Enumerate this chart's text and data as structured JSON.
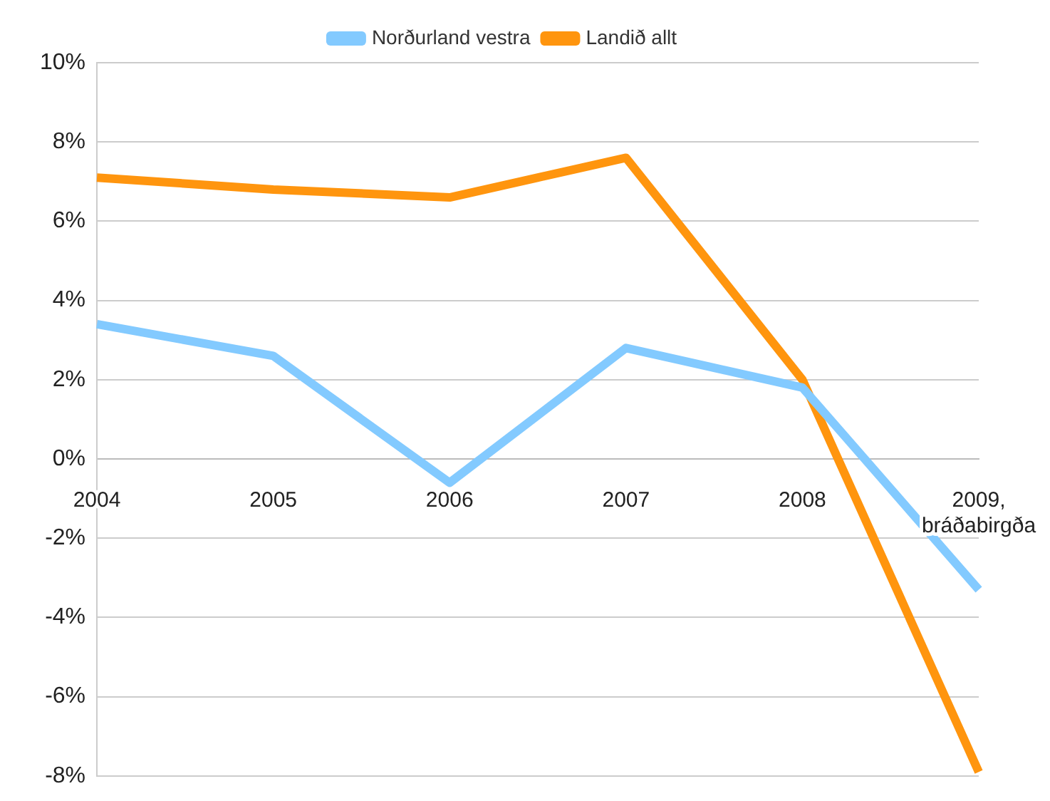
{
  "chart_data": {
    "type": "line",
    "categories": [
      "2004",
      "2005",
      "2006",
      "2007",
      "2008",
      "2009, bráðabirgða"
    ],
    "series": [
      {
        "name": "Norðurland vestra",
        "color": "#83caff",
        "values": [
          3.4,
          2.6,
          -0.6,
          2.8,
          1.8,
          -3.3
        ]
      },
      {
        "name": "Landið allt",
        "color": "#ff950e",
        "values": [
          7.1,
          6.8,
          6.6,
          7.6,
          2.0,
          -7.9
        ]
      }
    ],
    "ylim": [
      -8,
      10
    ],
    "yticks": [
      {
        "value": -8,
        "label": "-8%"
      },
      {
        "value": -6,
        "label": "-6%"
      },
      {
        "value": -4,
        "label": "-4%"
      },
      {
        "value": -2,
        "label": "-2%"
      },
      {
        "value": 0,
        "label": "0%"
      },
      {
        "value": 2,
        "label": "2%"
      },
      {
        "value": 4,
        "label": "4%"
      },
      {
        "value": 6,
        "label": "6%"
      },
      {
        "value": 8,
        "label": "8%"
      },
      {
        "value": 10,
        "label": "10%"
      }
    ],
    "grid": "y",
    "legend": "top",
    "marker": "none",
    "line_style": "solid"
  }
}
